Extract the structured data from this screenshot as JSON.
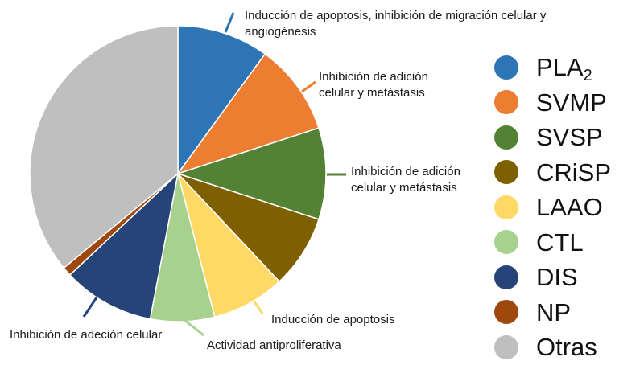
{
  "chart_data": {
    "type": "pie",
    "slices": [
      {
        "name": "PLA",
        "subscript": "2",
        "value": 10,
        "color": "#2e75b6"
      },
      {
        "name": "SVMP",
        "value": 10,
        "color": "#ed7d31"
      },
      {
        "name": "SVSP",
        "value": 10,
        "color": "#548235"
      },
      {
        "name": "CRiSP",
        "value": 8,
        "color": "#7f6000"
      },
      {
        "name": "LAAO",
        "value": 8,
        "color": "#ffd966"
      },
      {
        "name": "CTL",
        "value": 7,
        "color": "#a9d18e"
      },
      {
        "name": "DIS",
        "value": 10,
        "color": "#264478"
      },
      {
        "name": "NP",
        "value": 1,
        "color": "#9e480e"
      },
      {
        "name": "Otras",
        "value": 36,
        "color": "#bfbfbf"
      }
    ],
    "annotations": [
      {
        "slice": 0,
        "lines": [
          "Inducción de apoptosis, inhibición de migración celular y",
          "angiogénesis"
        ],
        "anchor": "start"
      },
      {
        "slice": 1,
        "lines": [
          "Inhibición de adición",
          "celular y metástasis"
        ],
        "anchor": "start"
      },
      {
        "slice": 2,
        "lines": [
          "Inhibición de adición",
          "celular y metástasis"
        ],
        "anchor": "start"
      },
      {
        "slice": 4,
        "lines": [
          "Inducción de apoptosis"
        ],
        "anchor": "start"
      },
      {
        "slice": 5,
        "lines": [
          "Actividad antiproliferativa"
        ],
        "anchor": "start"
      },
      {
        "slice": 6,
        "lines": [
          "Inhibición de adeción celular"
        ],
        "anchor": "start"
      }
    ],
    "legend_position": "right"
  }
}
